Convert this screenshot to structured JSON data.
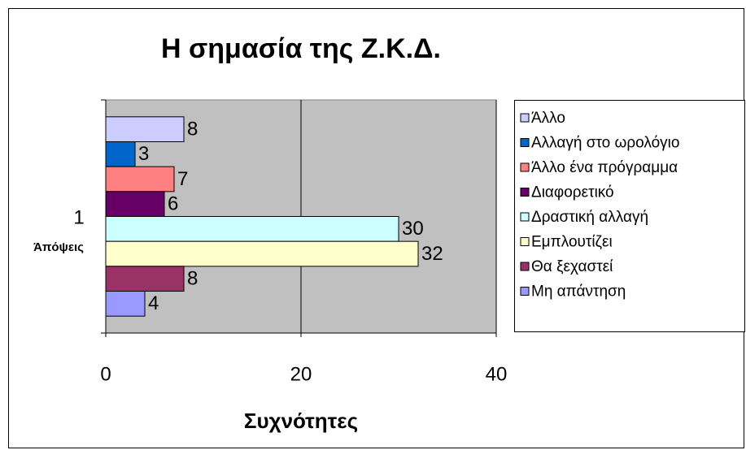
{
  "chart_data": {
    "type": "barh",
    "title": "Η σημασία της Ζ.Κ.Δ.",
    "x_label": "Συχνότητες",
    "y_label": "Άπόψεις",
    "categories": [
      "1"
    ],
    "series": [
      {
        "name": "Άλλο",
        "color": "#ccccff",
        "values": [
          8
        ]
      },
      {
        "name": "Αλλαγή στο ωρολόγιο",
        "color": "#0066cc",
        "values": [
          3
        ]
      },
      {
        "name": "Άλλο ένα πρόγραμμα",
        "color": "#ff8080",
        "values": [
          7
        ]
      },
      {
        "name": "Διαφορετικό",
        "color": "#660066",
        "values": [
          6
        ]
      },
      {
        "name": "Δραστική αλλαγή",
        "color": "#ccffff",
        "values": [
          30
        ]
      },
      {
        "name": "Εμπλουτίζει",
        "color": "#ffffcc",
        "values": [
          32
        ]
      },
      {
        "name": "Θα ξεχαστεί",
        "color": "#993366",
        "values": [
          8
        ]
      },
      {
        "name": "Μη απάντηση",
        "color": "#9999ff",
        "values": [
          4
        ]
      }
    ],
    "xlim": [
      0,
      40
    ],
    "xticks": [
      0,
      20,
      40
    ],
    "grid": true,
    "legend": "right"
  }
}
